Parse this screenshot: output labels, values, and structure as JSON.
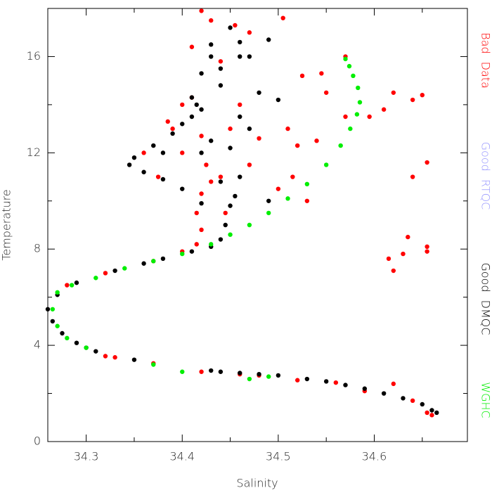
{
  "chart_data": {
    "type": "scatter",
    "x_label": "Salinity",
    "y_label": "Temperature",
    "xlim": [
      34.26,
      34.697
    ],
    "ylim": [
      0,
      18
    ],
    "xticks": [
      34.3,
      34.4,
      34.5,
      34.6
    ],
    "yticks": [
      0,
      4,
      8,
      12,
      16
    ],
    "xminorticks": [
      34.35,
      34.45,
      34.55,
      34.65
    ],
    "yminorticks": [
      2,
      6,
      10,
      14
    ],
    "legend": "right",
    "series": [
      {
        "name": "Bad Data",
        "color": "#ff0000",
        "x": [
          34.32,
          34.33,
          34.37,
          34.42,
          34.46,
          34.48,
          34.52,
          34.56,
          34.59,
          34.62,
          34.64,
          34.655,
          34.66,
          34.28,
          34.32,
          34.37,
          34.4,
          34.415,
          34.42,
          34.415,
          34.42,
          34.43,
          34.425,
          34.4,
          34.39,
          34.385,
          34.4,
          34.41,
          34.42,
          34.44,
          34.445,
          34.36,
          34.375,
          34.41,
          34.42,
          34.43,
          34.44,
          34.455,
          34.47,
          34.45,
          34.46,
          34.47,
          34.48,
          34.505,
          34.51,
          34.52,
          34.515,
          34.5,
          34.525,
          34.545,
          34.55,
          34.57,
          34.57,
          34.595,
          34.61,
          34.62,
          34.64,
          34.65,
          34.655,
          34.64,
          34.635,
          34.62,
          34.615,
          34.63,
          34.655,
          34.655,
          34.54,
          34.53
        ],
        "values": [
          3.55,
          3.5,
          3.25,
          2.9,
          2.8,
          2.75,
          2.55,
          2.45,
          2.1,
          2.4,
          1.7,
          1.2,
          1.1,
          6.5,
          7.0,
          7.5,
          7.9,
          8.2,
          8.8,
          9.5,
          10.3,
          10.8,
          11.5,
          12.0,
          13.0,
          13.3,
          14.0,
          14.3,
          12.7,
          11.0,
          9.5,
          12.0,
          11.0,
          16.4,
          17.9,
          17.5,
          15.8,
          17.3,
          17.0,
          13.0,
          14.0,
          11.5,
          12.6,
          17.6,
          13.0,
          12.3,
          11.0,
          10.5,
          15.2,
          15.3,
          14.5,
          13.5,
          16.0,
          13.5,
          13.8,
          14.5,
          14.2,
          14.4,
          11.6,
          11.0,
          8.5,
          7.1,
          7.6,
          7.8,
          8.1,
          7.9,
          12.5,
          10.0
        ]
      },
      {
        "name": "Good RTQC",
        "color": "#9999ff",
        "x": [],
        "values": []
      },
      {
        "name": "Good DMQC",
        "color": "#000000",
        "x": [
          34.26,
          34.265,
          34.275,
          34.29,
          34.3,
          34.31,
          34.35,
          34.43,
          34.44,
          34.46,
          34.48,
          34.5,
          34.53,
          34.55,
          34.57,
          34.59,
          34.61,
          34.63,
          34.65,
          34.66,
          34.665,
          34.27,
          34.29,
          34.33,
          34.36,
          34.38,
          34.41,
          34.43,
          34.44,
          34.445,
          34.45,
          34.455,
          34.44,
          34.42,
          34.4,
          34.38,
          34.36,
          34.345,
          34.35,
          34.37,
          34.39,
          34.41,
          34.415,
          34.42,
          34.42,
          34.43,
          34.43,
          34.45,
          34.46,
          34.44,
          34.46,
          34.43,
          34.45,
          34.47,
          34.48,
          34.49,
          34.5,
          34.49,
          34.46,
          34.44,
          34.46,
          34.42,
          34.4,
          34.38,
          34.41,
          34.47
        ],
        "values": [
          5.5,
          5.0,
          4.5,
          4.1,
          3.9,
          3.75,
          3.4,
          2.95,
          2.9,
          2.85,
          2.8,
          2.75,
          2.6,
          2.5,
          2.35,
          2.2,
          2.0,
          1.8,
          1.55,
          1.3,
          1.2,
          6.1,
          6.6,
          7.1,
          7.4,
          7.6,
          7.9,
          8.1,
          8.4,
          9.0,
          9.8,
          10.2,
          10.8,
          9.9,
          10.5,
          10.9,
          11.2,
          11.5,
          11.8,
          12.3,
          12.8,
          13.5,
          14.0,
          13.8,
          15.3,
          16.0,
          16.5,
          17.2,
          16.6,
          14.8,
          13.5,
          12.5,
          12.2,
          13.0,
          14.5,
          16.7,
          14.2,
          10.0,
          11.0,
          15.5,
          16.0,
          12.0,
          13.2,
          12.0,
          14.3,
          16.0
        ]
      },
      {
        "name": "WGHC",
        "color": "#00ee00",
        "x": [
          34.49,
          34.47,
          34.4,
          34.37,
          34.3,
          34.28,
          34.27,
          34.265,
          34.27,
          34.285,
          34.31,
          34.34,
          34.37,
          34.4,
          34.43,
          34.45,
          34.47,
          34.49,
          34.51,
          34.53,
          34.55,
          34.565,
          34.575,
          34.582,
          34.585,
          34.583,
          34.578,
          34.574,
          34.57
        ],
        "values": [
          2.7,
          2.6,
          2.9,
          3.2,
          3.9,
          4.3,
          4.8,
          5.5,
          6.2,
          6.5,
          6.8,
          7.2,
          7.5,
          7.8,
          8.2,
          8.6,
          9.0,
          9.5,
          10.1,
          10.7,
          11.5,
          12.3,
          13.0,
          13.6,
          14.1,
          14.7,
          15.2,
          15.6,
          15.9
        ]
      }
    ]
  }
}
